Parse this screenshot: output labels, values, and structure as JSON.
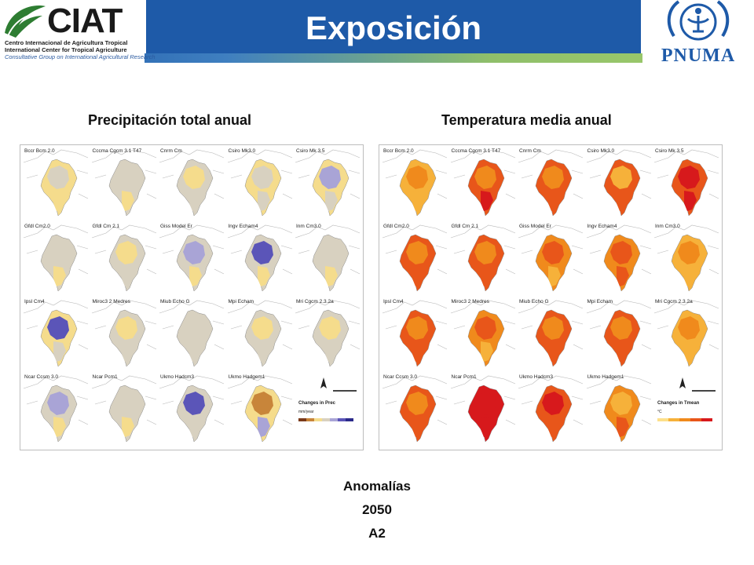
{
  "header": {
    "title": "Exposición",
    "accent_color": "#1e5aa8"
  },
  "logos": {
    "left": {
      "name": "CIAT",
      "line1": "Centro Internacional de Agricultura Tropical",
      "line2": "International Center for Tropical Agriculture",
      "line3": "Consultative Group on International Agricultural Research"
    },
    "right": {
      "name": "PNUMA"
    }
  },
  "panels": {
    "precipitation": {
      "title": "Precipitación total anual",
      "models": [
        "Bccr Bcm 2.0",
        "Cccma Cgcm 3.1 T47",
        "Cnrm Cm",
        "Csiro Mk3.0",
        "Csiro Mk 3.5",
        "Gfdl Cm2.0",
        "Gfdl Cm 2.1",
        "Giss Model Er",
        "Ingv Echam4",
        "Inm Cm3.0",
        "Ipsl Cm4",
        "Miroc3 2 Medres",
        "Miub Echo G",
        "Mpi Echam",
        "Mri Cgcm 2.3.2a",
        "Ncar Ccsm 3.0",
        "Ncar Pcm1",
        "Ukmo Hadcm3",
        "Ukmo Hadgem1"
      ],
      "legend_title": "Changes in Prec",
      "legend_unit": "mm/year",
      "colors": [
        "#7a3a1a",
        "#c8853a",
        "#f5dc8c",
        "#d8d1c0",
        "#a9a4d6",
        "#5b55b8",
        "#2b2a8a"
      ]
    },
    "temperature": {
      "title": "Temperatura media anual",
      "models": [
        "Bccr Bcm 2.0",
        "Cccma Cgcm 3.1 T47",
        "Cnrm Cm",
        "Csiro Mk3.0",
        "Csiro Mk 3.5",
        "Gfdl Cm2.0",
        "Gfdl Cm 2.1",
        "Giss Model Er",
        "Ingv Echam4",
        "Inm Cm3.0",
        "Ipsl Cm4",
        "Miroc3 2 Medres",
        "Miub Echo G",
        "Mpi Echam",
        "Mri Cgcm 2.3.2a",
        "Ncar Ccsm 3.0",
        "Ncar Pcm1",
        "Ukmo Hadcm3",
        "Ukmo Hadgem1"
      ],
      "legend_title": "Changes in Tmean",
      "legend_unit": "°C",
      "colors": [
        "#fde08a",
        "#f6b13a",
        "#f08a1c",
        "#e8561a",
        "#d7191c"
      ]
    }
  },
  "footer": {
    "line1": "Anomalías",
    "line2": "2050",
    "line3": "A2"
  }
}
